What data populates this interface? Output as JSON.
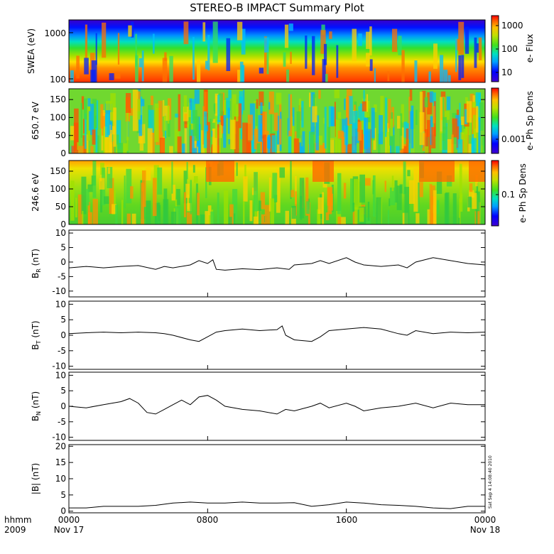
{
  "chart_data": {
    "type": "line",
    "title": "STEREO-B IMPACT Summary Plot",
    "x_axis": {
      "ticks": [
        "0000",
        "0800",
        "1600",
        "0000"
      ],
      "dates": [
        "Nov 17",
        "Nov 18"
      ],
      "year": "2009",
      "format_label": "hhmm",
      "range_hours": [
        0,
        24
      ]
    },
    "timestamp": "Sat Sep  4 14:08:40 2010",
    "panels": [
      {
        "kind": "spectrogram",
        "ylabel": "SWEA (eV)",
        "yscale": "log",
        "ylim": [
          90,
          2000
        ],
        "yticks": [
          "1000",
          "100"
        ],
        "colorbar": {
          "label": "e- Flux",
          "scale": "log",
          "ticks": [
            "1000",
            "100",
            "10"
          ]
        },
        "description": "electron energy flux versus energy; high flux at low energy, low flux at high energy"
      },
      {
        "kind": "spectrogram",
        "ylabel": "650.7 eV",
        "ylim": [
          0,
          180
        ],
        "yticks": [
          "150",
          "100",
          "50",
          "0"
        ],
        "colorbar": {
          "label": "e- Ph Sp Dens",
          "scale": "log",
          "ticks": [
            "0.001"
          ]
        }
      },
      {
        "kind": "spectrogram",
        "ylabel": "246.6 eV",
        "ylim": [
          0,
          180
        ],
        "yticks": [
          "150",
          "100",
          "50",
          "0"
        ],
        "colorbar": {
          "label": "e- Ph Sp Dens",
          "scale": "log",
          "ticks": [
            "0.1"
          ]
        }
      },
      {
        "kind": "line",
        "ylabel": "B",
        "subscript": "R",
        "unit": "(nT)",
        "ylim": [
          -12,
          11
        ],
        "yticks": [
          "10",
          "5",
          "0",
          "-5",
          "-10"
        ],
        "x": [
          0,
          1,
          2,
          3,
          4,
          5,
          5.5,
          6,
          7,
          7.5,
          8,
          8.3,
          8.5,
          9,
          10,
          11,
          12,
          12.7,
          13,
          14,
          14.5,
          15,
          16,
          16.5,
          17,
          18,
          19,
          19.5,
          20,
          21,
          22,
          23,
          24
        ],
        "values": [
          -2.0,
          -1.5,
          -2.0,
          -1.5,
          -1.2,
          -2.5,
          -1.5,
          -2.0,
          -1.0,
          0.5,
          -0.5,
          0.8,
          -2.5,
          -2.8,
          -2.3,
          -2.6,
          -2.0,
          -2.5,
          -1.0,
          -0.5,
          0.5,
          -0.5,
          1.5,
          0.0,
          -1.0,
          -1.5,
          -1.0,
          -2.0,
          0.0,
          1.5,
          0.5,
          -0.5,
          -1.0
        ]
      },
      {
        "kind": "line",
        "ylabel": "B",
        "subscript": "T",
        "unit": "(nT)",
        "ylim": [
          -11,
          11
        ],
        "yticks": [
          "10",
          "5",
          "0",
          "-5",
          "-10"
        ],
        "x": [
          0,
          1,
          2,
          3,
          4,
          5,
          5.5,
          6,
          7,
          7.5,
          8,
          8.5,
          9,
          10,
          11,
          12,
          12.3,
          12.5,
          13,
          14,
          14.5,
          15,
          16,
          17,
          18,
          19,
          19.5,
          20,
          21,
          22,
          23,
          24
        ],
        "values": [
          0.5,
          0.8,
          1.0,
          0.8,
          1.0,
          0.8,
          0.5,
          0.0,
          -1.5,
          -2.0,
          -0.5,
          1.0,
          1.5,
          2.0,
          1.5,
          1.8,
          3.0,
          0.0,
          -1.5,
          -2.0,
          -0.5,
          1.5,
          2.0,
          2.5,
          2.0,
          0.5,
          0.0,
          1.5,
          0.5,
          1.0,
          0.8,
          1.0
        ]
      },
      {
        "kind": "line",
        "ylabel": "B",
        "subscript": "N",
        "unit": "(nT)",
        "ylim": [
          -11,
          11
        ],
        "yticks": [
          "10",
          "5",
          "0",
          "-5",
          "-10"
        ],
        "x": [
          0,
          1,
          2,
          3,
          3.5,
          4,
          4.5,
          5,
          5.5,
          6,
          6.5,
          7,
          7.5,
          8,
          8.5,
          9,
          10,
          11,
          12,
          12.5,
          13,
          14,
          14.5,
          15,
          16,
          16.5,
          17,
          18,
          19,
          20,
          21,
          22,
          23,
          24
        ],
        "values": [
          0.0,
          -0.5,
          0.5,
          1.5,
          2.5,
          1.0,
          -2.0,
          -2.5,
          -1.0,
          0.5,
          2.0,
          0.5,
          3.0,
          3.5,
          2.0,
          0.0,
          -1.0,
          -1.5,
          -2.5,
          -1.0,
          -1.5,
          0.0,
          1.0,
          -0.5,
          1.0,
          0.0,
          -1.5,
          -0.5,
          0.0,
          1.0,
          -0.5,
          1.0,
          0.5,
          0.5
        ]
      },
      {
        "kind": "line",
        "ylabel": "|B| (nT)",
        "ylim": [
          -0.5,
          20.5
        ],
        "yticks": [
          "20",
          "15",
          "10",
          "5",
          "0"
        ],
        "x": [
          0,
          1,
          2,
          3,
          4,
          5,
          6,
          7,
          8,
          9,
          10,
          11,
          12,
          13,
          14,
          15,
          16,
          17,
          18,
          19,
          20,
          21,
          22,
          23,
          24
        ],
        "values": [
          1.0,
          1.0,
          1.5,
          1.5,
          1.5,
          1.8,
          2.5,
          2.8,
          2.5,
          2.5,
          2.8,
          2.5,
          2.5,
          2.6,
          1.5,
          2.0,
          2.8,
          2.5,
          2.0,
          1.8,
          1.5,
          1.0,
          0.8,
          1.5,
          1.5
        ]
      }
    ]
  }
}
